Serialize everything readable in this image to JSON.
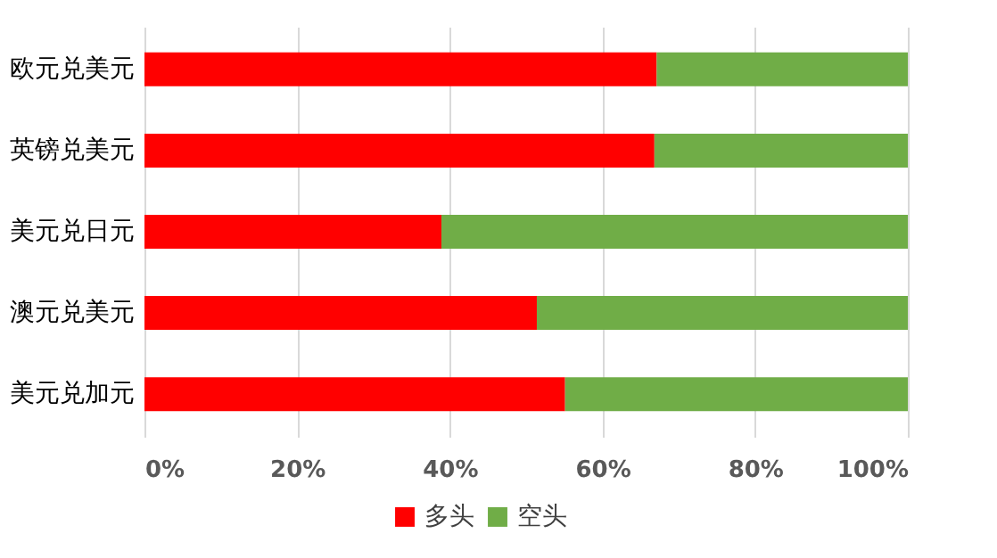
{
  "chart_data": {
    "type": "bar",
    "orientation": "horizontal",
    "stacked": true,
    "categories": [
      "欧元兑美元",
      "英镑兑美元",
      "美元兑日元",
      "澳元兑美元",
      "美元兑加元"
    ],
    "series": [
      {
        "name": "多头",
        "color": "#ff0000",
        "values": [
          67.1,
          66.8,
          38.9,
          51.4,
          55.1
        ]
      },
      {
        "name": "空头",
        "color": "#70ad47",
        "values": [
          32.9,
          33.2,
          61.1,
          48.6,
          44.9
        ]
      }
    ],
    "xlim": [
      0,
      100
    ],
    "xticks": [
      {
        "value": 0,
        "label": "0%"
      },
      {
        "value": 20,
        "label": "20%"
      },
      {
        "value": 40,
        "label": "40%"
      },
      {
        "value": 60,
        "label": "60%"
      },
      {
        "value": 80,
        "label": "80%"
      },
      {
        "value": 100,
        "label": "100%"
      }
    ],
    "grid": "x",
    "legend": "bottom"
  }
}
